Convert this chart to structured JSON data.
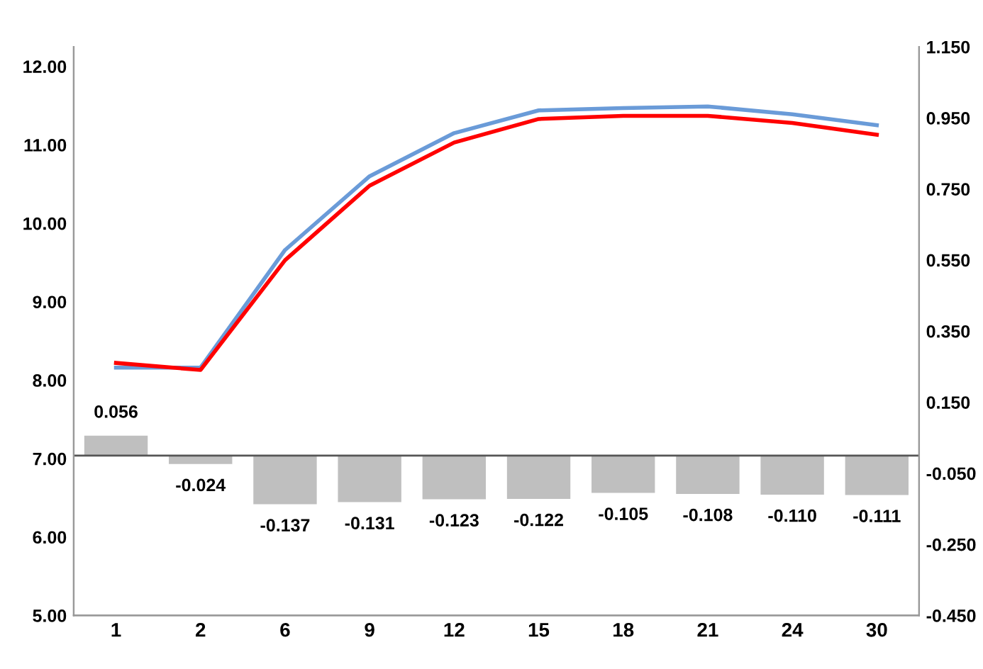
{
  "chart_data": {
    "type": "line",
    "categories": [
      "1",
      "2",
      "6",
      "9",
      "12",
      "15",
      "18",
      "21",
      "24",
      "30"
    ],
    "series": [
      {
        "type": "bar",
        "axis": "y2",
        "color": "#bfbfbf",
        "values": [
          0.056,
          -0.024,
          -0.137,
          -0.131,
          -0.123,
          -0.122,
          -0.105,
          -0.108,
          -0.11,
          -0.111
        ],
        "value_labels": [
          "0.056",
          "-0.024",
          "-0.137",
          "-0.131",
          "-0.123",
          "-0.122",
          "-0.105",
          "-0.108",
          "-0.110",
          "-0.111"
        ]
      },
      {
        "color": "#6a9bd8",
        "values": [
          8.16,
          8.16,
          9.66,
          10.6,
          11.15,
          11.44,
          11.47,
          11.49,
          11.39,
          11.25
        ]
      },
      {
        "color": "#ff0000",
        "values": [
          8.22,
          8.13,
          9.53,
          10.48,
          11.03,
          11.33,
          11.37,
          11.37,
          11.28,
          11.13
        ]
      }
    ],
    "ylim": [
      5,
      12.25
    ],
    "yticks": [
      {
        "value": 5,
        "label": "5.00"
      },
      {
        "value": 6,
        "label": "6.00"
      },
      {
        "value": 7,
        "label": "7.00"
      },
      {
        "value": 8,
        "label": "8.00"
      },
      {
        "value": 9,
        "label": "9.00"
      },
      {
        "value": 10,
        "label": "10.00"
      },
      {
        "value": 11,
        "label": "11.00"
      },
      {
        "value": 12,
        "label": "12.00"
      }
    ],
    "y2lim": [
      -0.45,
      1.15
    ],
    "y2ticks": [
      {
        "value": -0.45,
        "label": "-0.450"
      },
      {
        "value": -0.25,
        "label": "-0.250"
      },
      {
        "value": -0.05,
        "label": "-0.050"
      },
      {
        "value": 0.15,
        "label": "0.150"
      },
      {
        "value": 0.35,
        "label": "0.350"
      },
      {
        "value": 0.55,
        "label": "0.550"
      },
      {
        "value": 0.75,
        "label": "0.750"
      },
      {
        "value": 0.95,
        "label": "0.950"
      },
      {
        "value": 1.15,
        "label": "1.150"
      }
    ],
    "grid": false
  }
}
